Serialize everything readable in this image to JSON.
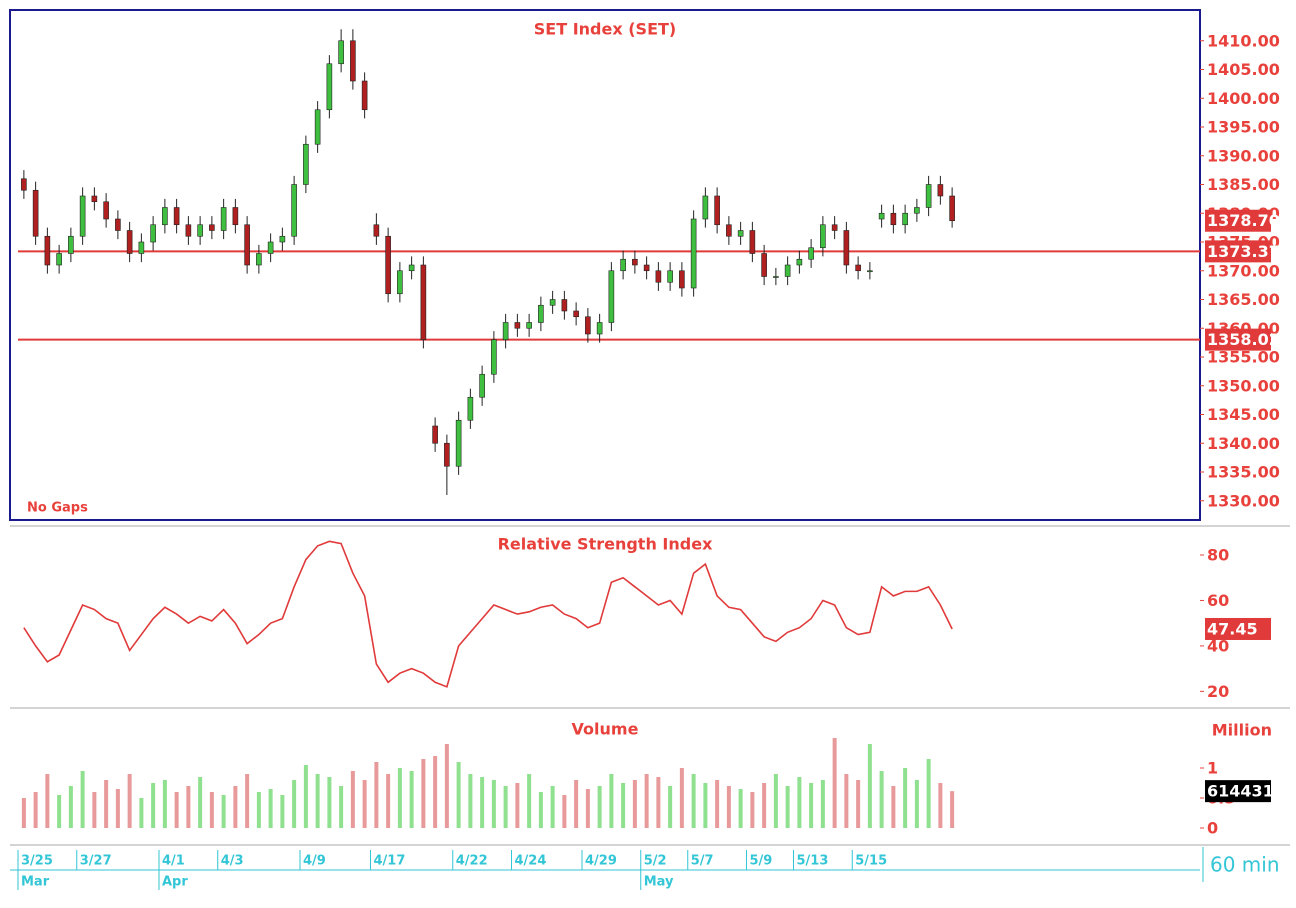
{
  "interval": "60 min",
  "chart_data": [
    {
      "type": "candlestick",
      "title": "SET Index (SET)",
      "note": "No Gaps",
      "categories": [
        "3/25",
        null,
        null,
        null,
        null,
        "3/27",
        null,
        null,
        null,
        null,
        null,
        null,
        "4/1",
        null,
        null,
        null,
        null,
        "4/3",
        null,
        null,
        null,
        null,
        null,
        null,
        "4/9",
        null,
        null,
        null,
        null,
        null,
        "4/17",
        null,
        null,
        null,
        null,
        null,
        null,
        "4/22",
        null,
        null,
        null,
        null,
        "4/24",
        null,
        null,
        null,
        null,
        null,
        "4/29",
        null,
        null,
        null,
        null,
        "5/2",
        null,
        null,
        null,
        "5/7",
        null,
        null,
        null,
        null,
        "5/9",
        null,
        null,
        null,
        "5/13",
        null,
        null,
        null,
        null,
        "5/15",
        null,
        null,
        null,
        null,
        null,
        null,
        null,
        null
      ],
      "months": [
        {
          "value": 0,
          "label": "Mar"
        },
        {
          "value": 12,
          "label": "Apr"
        },
        {
          "value": 53,
          "label": "May"
        }
      ],
      "open": [
        1386,
        1384,
        1376,
        1371,
        1373,
        1376,
        1383,
        1382,
        1379,
        1377,
        1373,
        1375,
        1378,
        1381,
        1378,
        1376,
        1378,
        1377,
        1381,
        1378,
        1371,
        1373,
        1375,
        1376,
        1385,
        1392,
        1398,
        1406,
        1410,
        1403,
        1378,
        1376,
        1366,
        1370,
        1371,
        1343,
        1340,
        1336,
        1344,
        1348,
        1352,
        1358,
        1361,
        1360,
        1361,
        1364,
        1365,
        1363,
        1362,
        1359,
        1361,
        1370,
        1372,
        1371,
        1370,
        1368,
        1370,
        1367,
        1379,
        1383,
        1378,
        1376,
        1377,
        1373,
        1369,
        1369,
        1371,
        1372,
        1374,
        1378,
        1377,
        1371,
        1370,
        1379,
        1380,
        1378,
        1380,
        1381,
        1385,
        1383
      ],
      "high": [
        1387.5,
        1385.5,
        1377.5,
        1374.5,
        1377.5,
        1384.5,
        1384.5,
        1383.5,
        1380.5,
        1378.5,
        1376.5,
        1379.5,
        1382.5,
        1382.5,
        1379.5,
        1379.5,
        1379.5,
        1382.5,
        1382.5,
        1379.5,
        1374.5,
        1376.5,
        1377.5,
        1386.5,
        1393.5,
        1399.5,
        1407.5,
        1412,
        1412,
        1404.5,
        1380,
        1377.5,
        1371.5,
        1372.5,
        1372.5,
        1344.5,
        1341.5,
        1345.5,
        1349.5,
        1353.5,
        1359.5,
        1362.5,
        1362.5,
        1362.5,
        1365.5,
        1366.5,
        1366.5,
        1364.5,
        1363.5,
        1362.5,
        1371.5,
        1373.5,
        1373.5,
        1372.5,
        1371.5,
        1371.5,
        1371.5,
        1380.5,
        1384.5,
        1384.5,
        1379.5,
        1378.5,
        1378.5,
        1374.5,
        1370.5,
        1372.5,
        1373.5,
        1375.5,
        1379.5,
        1379.5,
        1378.5,
        1372.5,
        1371.5,
        1381.5,
        1381.5,
        1381.5,
        1382.5,
        1386.5,
        1386.5,
        1384.5
      ],
      "low": [
        1382.5,
        1374.5,
        1369.5,
        1369.5,
        1371.5,
        1374.5,
        1380.5,
        1377.5,
        1375.5,
        1371.5,
        1371.5,
        1373.5,
        1376.5,
        1376.5,
        1374.5,
        1374.5,
        1375.5,
        1375.5,
        1376.5,
        1369.5,
        1369.5,
        1371.5,
        1373.5,
        1374.5,
        1383.5,
        1390.5,
        1396.5,
        1404.5,
        1401.5,
        1396.5,
        1374.5,
        1364.5,
        1364.5,
        1368.5,
        1356.5,
        1338.5,
        1331,
        1334.5,
        1342.5,
        1346.5,
        1350.5,
        1356.5,
        1358.5,
        1358.5,
        1359.5,
        1362.5,
        1361.5,
        1360.5,
        1357.5,
        1357.5,
        1359.5,
        1368.5,
        1369.5,
        1368.5,
        1366.5,
        1366.5,
        1365.5,
        1365.5,
        1377.5,
        1376.5,
        1374.5,
        1374.5,
        1371.5,
        1367.5,
        1367.5,
        1367.5,
        1369.5,
        1370.5,
        1372.5,
        1375.5,
        1369.5,
        1368.5,
        1368.5,
        1377.5,
        1376.5,
        1376.5,
        1378.5,
        1379.5,
        1381.5,
        1377.5
      ],
      "close": [
        1384,
        1376,
        1371,
        1373,
        1376,
        1383,
        1382,
        1379,
        1377,
        1373,
        1375,
        1378,
        1381,
        1378,
        1376,
        1378,
        1377,
        1381,
        1378,
        1371,
        1373,
        1375,
        1376,
        1385,
        1392,
        1398,
        1406,
        1410,
        1403,
        1398,
        1376,
        1366,
        1370,
        1371,
        1358,
        1340,
        1336,
        1344,
        1348,
        1352,
        1358,
        1361,
        1360,
        1361,
        1364,
        1365,
        1363,
        1362,
        1359,
        1361,
        1370,
        1372,
        1371,
        1370,
        1368,
        1370,
        1367,
        1379,
        1383,
        1378,
        1376,
        1377,
        1373,
        1369,
        1369,
        1371,
        1372,
        1374,
        1378,
        1377,
        1371,
        1370,
        1370,
        1380,
        1378,
        1380,
        1381,
        1385,
        1383,
        1378.7
      ],
      "up_color": "#3fbf3f",
      "down_color": "#b02020",
      "ylim": [
        1327,
        1415
      ],
      "yticks": [
        {
          "value": 1330,
          "label": "1330.00"
        },
        {
          "value": 1335,
          "label": "1335.00"
        },
        {
          "value": 1340,
          "label": "1340.00"
        },
        {
          "value": 1345,
          "label": "1345.00"
        },
        {
          "value": 1350,
          "label": "1350.00"
        },
        {
          "value": 1355,
          "label": "1355.00"
        },
        {
          "value": 1360,
          "label": "1360.00"
        },
        {
          "value": 1365,
          "label": "1365.00"
        },
        {
          "value": 1370,
          "label": "1370.00"
        },
        {
          "value": 1375,
          "label": "1375.00"
        },
        {
          "value": 1380,
          "label": "1380.00"
        },
        {
          "value": 1385,
          "label": "1385.00"
        },
        {
          "value": 1390,
          "label": "1390.00"
        },
        {
          "value": 1395,
          "label": "1395.00"
        },
        {
          "value": 1400,
          "label": "1400.00"
        },
        {
          "value": 1405,
          "label": "1405.00"
        },
        {
          "value": 1410,
          "label": "1410.00"
        }
      ],
      "levels": [
        {
          "value": 1373.37,
          "label": "1373.37"
        },
        {
          "value": 1358.02,
          "label": "1358.02"
        }
      ],
      "level_color": "#e03a3a",
      "last": {
        "value": 1378.7,
        "label": "1378.70"
      }
    },
    {
      "type": "line",
      "title": "Relative Strength Index",
      "color": "#e03a3a",
      "values": [
        48,
        40,
        33,
        36,
        47,
        58,
        56,
        52,
        50,
        38,
        45,
        52,
        57,
        54,
        50,
        53,
        51,
        56,
        50,
        41,
        45,
        50,
        52,
        66,
        78,
        84,
        86,
        85,
        72,
        62,
        32,
        24,
        28,
        30,
        28,
        24,
        22,
        40,
        46,
        52,
        58,
        56,
        54,
        55,
        57,
        58,
        54,
        52,
        48,
        50,
        68,
        70,
        66,
        62,
        58,
        60,
        54,
        72,
        76,
        62,
        57,
        56,
        50,
        44,
        42,
        46,
        48,
        52,
        60,
        58,
        48,
        45,
        46,
        66,
        62,
        64,
        64,
        66,
        58,
        47.45
      ],
      "ylim": [
        14,
        91
      ],
      "yticks": [
        20,
        40,
        60,
        80
      ],
      "last": {
        "value": 47.45,
        "label": "47.45"
      }
    },
    {
      "type": "bar",
      "title": "Volume",
      "y_label": "Million",
      "values": [
        0.5,
        0.6,
        0.9,
        0.55,
        0.7,
        0.95,
        0.6,
        0.8,
        0.65,
        0.9,
        0.5,
        0.75,
        0.8,
        0.6,
        0.7,
        0.85,
        0.6,
        0.55,
        0.7,
        0.9,
        0.6,
        0.65,
        0.55,
        0.8,
        1.05,
        0.9,
        0.85,
        0.7,
        0.95,
        0.8,
        1.1,
        0.9,
        1.0,
        0.95,
        1.15,
        1.2,
        1.4,
        1.1,
        0.9,
        0.85,
        0.8,
        0.7,
        0.75,
        0.9,
        0.6,
        0.7,
        0.55,
        0.8,
        0.65,
        0.7,
        0.9,
        0.75,
        0.8,
        0.9,
        0.85,
        0.7,
        1.0,
        0.9,
        0.75,
        0.8,
        0.7,
        0.65,
        0.6,
        0.75,
        0.9,
        0.7,
        0.85,
        0.75,
        0.8,
        1.5,
        0.9,
        0.8,
        1.4,
        0.95,
        0.7,
        1.0,
        0.8,
        1.15,
        0.75,
        0.614431
      ],
      "up_color": "#8fe08f",
      "down_color": "#e89a9a",
      "ylim": [
        0,
        1.6
      ],
      "yticks": [
        0,
        0.5,
        1
      ],
      "last": {
        "value": 0.614431,
        "label": "614431"
      }
    }
  ]
}
